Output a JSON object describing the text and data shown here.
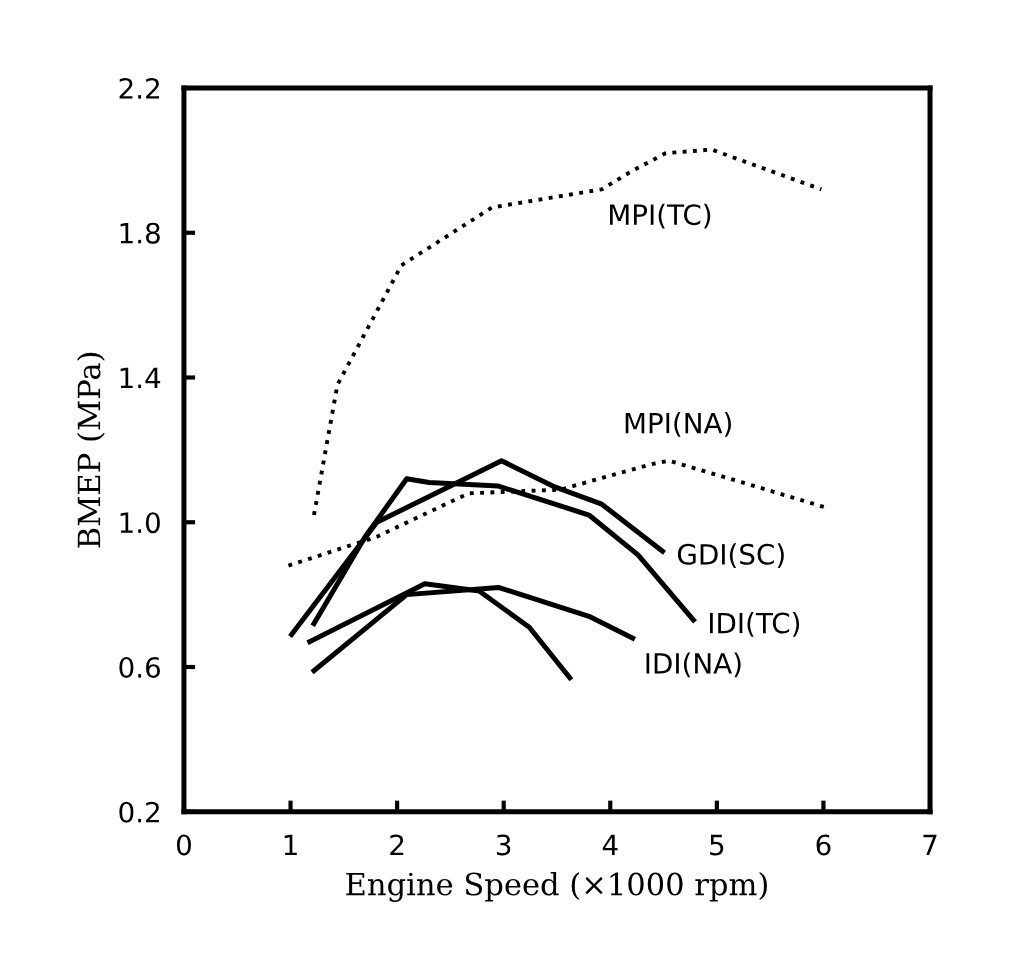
{
  "chart_data": {
    "type": "line",
    "xlabel": "Engine Speed (×1000 rpm)",
    "ylabel": "BMEP (MPa)",
    "xlim": [
      0,
      7
    ],
    "xticks": [
      0,
      1,
      2,
      3,
      4,
      5,
      6,
      7
    ],
    "ylim": [
      0.2,
      2.2
    ],
    "yticks": [
      0.2,
      0.6,
      {
        "value": 1,
        "label": "1.0"
      },
      1.4,
      1.8,
      2.2
    ],
    "grid": false,
    "legend": false,
    "marker": "none",
    "series": [
      {
        "name": "MPI(TC)",
        "color": "#000000",
        "line_style": "dotted",
        "x": [
          1.22,
          1.44,
          2.04,
          2.89,
          3.92,
          4.2,
          4.52,
          4.95,
          5.98
        ],
        "values": [
          1.02,
          1.38,
          1.71,
          1.87,
          1.92,
          1.97,
          2.02,
          2.03,
          1.92
        ]
      },
      {
        "name": "MPI(NA)",
        "color": "#000000",
        "line_style": "dotted",
        "x": [
          0.98,
          1.81,
          2.67,
          3.53,
          4.38,
          4.55,
          5.24,
          6.03
        ],
        "values": [
          0.88,
          0.96,
          1.08,
          1.09,
          1.16,
          1.17,
          1.11,
          1.04
        ]
      },
      {
        "name": "GDI(SC)",
        "color": "#000000",
        "line_style": "solid",
        "x": [
          1.01,
          1.81,
          2.5,
          2.98,
          3.46,
          3.92,
          4.49
        ],
        "values": [
          0.69,
          1.0,
          1.1,
          1.17,
          1.1,
          1.05,
          0.92
        ]
      },
      {
        "name": "IDI(TC)",
        "color": "#000000",
        "line_style": "solid",
        "x": [
          1.22,
          1.7,
          2.09,
          2.3,
          2.95,
          3.8,
          4.26,
          4.78
        ],
        "values": [
          0.72,
          0.96,
          1.12,
          1.11,
          1.1,
          1.02,
          0.91,
          0.73
        ]
      },
      {
        "name": "IDI(NA)",
        "color": "#000000",
        "line_style": "solid",
        "x": [
          1.22,
          2.09,
          2.95,
          3.8,
          4.21
        ],
        "values": [
          0.59,
          0.8,
          0.82,
          0.74,
          0.68
        ]
      },
      {
        "color": "#000000",
        "line_style": "solid",
        "x": [
          1.18,
          2.26,
          2.77,
          3.24,
          3.62
        ],
        "values": [
          0.67,
          0.83,
          0.81,
          0.71,
          0.57
        ]
      }
    ]
  }
}
